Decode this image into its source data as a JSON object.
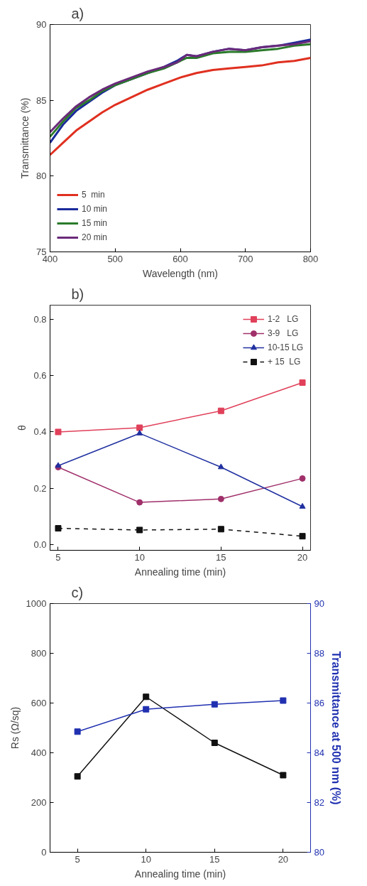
{
  "chart_data": [
    {
      "type": "line",
      "title": "a)",
      "xlabel": "Wavelength (nm)",
      "ylabel": "Transmittance (%)",
      "xlim": [
        400,
        800
      ],
      "ylim": [
        75,
        90
      ],
      "xticks": [
        400,
        500,
        600,
        700,
        800
      ],
      "yticks": [
        75,
        80,
        85,
        90
      ],
      "legend": "bottom left",
      "grid": false,
      "series": [
        {
          "name": "5  min",
          "color": "#e03020",
          "x": [
            400,
            420,
            440,
            460,
            480,
            500,
            525,
            550,
            575,
            600,
            625,
            650,
            675,
            700,
            725,
            750,
            775,
            800
          ],
          "values": [
            81.4,
            82.2,
            83.0,
            83.6,
            84.2,
            84.7,
            85.2,
            85.7,
            86.1,
            86.5,
            86.8,
            87.0,
            87.1,
            87.2,
            87.3,
            87.5,
            87.6,
            87.8
          ]
        },
        {
          "name": "10 min",
          "color": "#1a2a9a",
          "x": [
            400,
            420,
            440,
            460,
            480,
            500,
            525,
            550,
            575,
            595,
            610,
            625,
            650,
            675,
            700,
            725,
            750,
            775,
            800
          ],
          "values": [
            82.2,
            83.4,
            84.3,
            84.9,
            85.5,
            86.0,
            86.4,
            86.8,
            87.2,
            87.6,
            88.0,
            87.9,
            88.2,
            88.4,
            88.3,
            88.5,
            88.6,
            88.8,
            89.0
          ]
        },
        {
          "name": "15 min",
          "color": "#2a7a2a",
          "x": [
            400,
            420,
            440,
            460,
            480,
            500,
            525,
            550,
            575,
            595,
            610,
            625,
            650,
            675,
            700,
            725,
            750,
            775,
            800
          ],
          "values": [
            82.6,
            83.6,
            84.5,
            85.0,
            85.6,
            86.0,
            86.4,
            86.8,
            87.1,
            87.5,
            87.8,
            87.8,
            88.1,
            88.2,
            88.2,
            88.3,
            88.4,
            88.6,
            88.7
          ]
        },
        {
          "name": "20 min",
          "color": "#6a2a7a",
          "x": [
            400,
            420,
            440,
            460,
            480,
            500,
            525,
            550,
            575,
            595,
            610,
            625,
            650,
            675,
            700,
            725,
            750,
            775,
            800
          ],
          "values": [
            82.9,
            83.8,
            84.6,
            85.2,
            85.7,
            86.1,
            86.5,
            86.9,
            87.2,
            87.5,
            88.0,
            87.9,
            88.2,
            88.4,
            88.3,
            88.5,
            88.6,
            88.7,
            88.9
          ]
        }
      ]
    },
    {
      "type": "line",
      "title": "b)",
      "xlabel": "Annealing time (min)",
      "ylabel": "θ",
      "xlim": [
        4.5,
        20.5
      ],
      "ylim": [
        -0.02,
        0.85
      ],
      "xticks": [
        5,
        10,
        15,
        20
      ],
      "yticks": [
        {
          "value": 0,
          "label": "0.0"
        },
        0.2,
        0.4,
        0.6,
        0.8
      ],
      "legend": "top right",
      "grid": false,
      "series": [
        {
          "name": "1-2   LG",
          "color": "#e0405a",
          "marker": "square",
          "x": [
            5,
            10,
            15,
            20
          ],
          "values": [
            0.4,
            0.415,
            0.475,
            0.575
          ]
        },
        {
          "name": "3-9   LG",
          "color": "#a0306a",
          "marker": "circle",
          "x": [
            5,
            10,
            15,
            20
          ],
          "values": [
            0.275,
            0.15,
            0.162,
            0.235
          ]
        },
        {
          "name": "10-15 LG",
          "color": "#2030a0",
          "marker": "triangle",
          "x": [
            5,
            10,
            15,
            20
          ],
          "values": [
            0.28,
            0.395,
            0.275,
            0.135
          ]
        },
        {
          "name": "+ 15  LG",
          "color": "#111111",
          "marker": "square",
          "line_style": "dashed",
          "x": [
            5,
            10,
            15,
            20
          ],
          "values": [
            0.058,
            0.052,
            0.055,
            0.03
          ]
        }
      ]
    },
    {
      "type": "line",
      "title": "c)",
      "xlabel": "Annealing time (min)",
      "ylabel": "Rs (Ω/sq)",
      "y2label": "Transmittance at 500 nm (%)",
      "xlim": [
        3,
        22
      ],
      "ylim": [
        0,
        1000
      ],
      "y2lim": [
        80,
        90
      ],
      "xticks": [
        5,
        10,
        15,
        20
      ],
      "yticks": [
        0,
        200,
        400,
        600,
        800,
        1000
      ],
      "y2ticks": [
        80,
        82,
        84,
        86,
        88,
        90
      ],
      "legend": false,
      "grid": false,
      "series": [
        {
          "color": "#111111",
          "marker": "square",
          "x": [
            5,
            10,
            15,
            20
          ],
          "values": [
            305,
            625,
            440,
            310
          ]
        },
        {
          "color": "#2030b0",
          "marker": "square",
          "axis": "y2",
          "x": [
            5,
            10,
            15,
            20
          ],
          "values": [
            84.85,
            85.75,
            85.95,
            86.1
          ]
        }
      ]
    }
  ]
}
